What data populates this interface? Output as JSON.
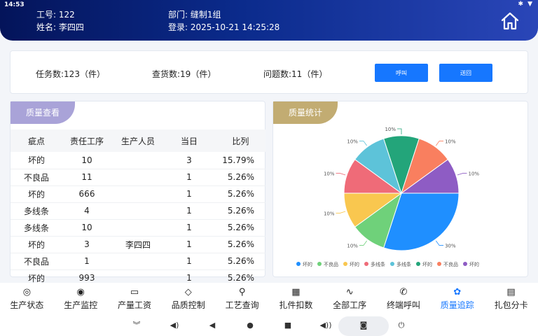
{
  "status_bar": {
    "time": "14:53",
    "bluetooth": "✱",
    "wifi": "▼"
  },
  "header": {
    "employee_id": "工号: 122",
    "name": "姓名: 李四四",
    "department": "部门: 缝制1组",
    "login": "登录: 2025-10-21 14:25:28"
  },
  "stats": {
    "tasks": "任务数:123（件）",
    "checks": "查货数:19（件）",
    "issues": "问题数:11（件）",
    "call_button": "呼叫",
    "send_button": "送回"
  },
  "quality_panel": {
    "title": "质量查看",
    "columns": [
      "疵点",
      "责任工序",
      "生产人员",
      "当日",
      "比列"
    ],
    "rows": [
      [
        "坏的",
        "10",
        "",
        "3",
        "15.79%"
      ],
      [
        "不良品",
        "11",
        "",
        "1",
        "5.26%"
      ],
      [
        "坏的",
        "666",
        "",
        "1",
        "5.26%"
      ],
      [
        "多线条",
        "4",
        "",
        "1",
        "5.26%"
      ],
      [
        "多线条",
        "10",
        "",
        "1",
        "5.26%"
      ],
      [
        "坏的",
        "3",
        "李四四",
        "1",
        "5.26%"
      ],
      [
        "不良品",
        "1",
        "",
        "1",
        "5.26%"
      ],
      [
        "坏的",
        "993",
        "",
        "1",
        "5.26%"
      ]
    ]
  },
  "stats_panel": {
    "title": "质量统计"
  },
  "chart_data": {
    "type": "pie",
    "slices": [
      {
        "label": "坏的",
        "value": 30,
        "label_text": "30%",
        "color": "#1f8fff"
      },
      {
        "label": "不良品",
        "value": 10,
        "label_text": "10%",
        "color": "#6fd17a"
      },
      {
        "label": "坏的",
        "value": 10,
        "label_text": "10%",
        "color": "#f9c74f"
      },
      {
        "label": "多线条",
        "value": 10,
        "label_text": "10%",
        "color": "#ef6b78"
      },
      {
        "label": "多线条",
        "value": 10,
        "label_text": "10%",
        "color": "#5dc3d9"
      },
      {
        "label": "坏的",
        "value": 10,
        "label_text": "10%",
        "color": "#23a57a"
      },
      {
        "label": "不良品",
        "value": 10,
        "label_text": "10%",
        "color": "#f97f5f"
      },
      {
        "label": "坏的",
        "value": 10,
        "label_text": "10%",
        "color": "#8e5cc4"
      }
    ],
    "legend_position": "bottom"
  },
  "nav": {
    "items": [
      {
        "label": "生产状态",
        "icon": "◎"
      },
      {
        "label": "生产监控",
        "icon": "◉"
      },
      {
        "label": "产量工资",
        "icon": "▭"
      },
      {
        "label": "品质控制",
        "icon": "◇"
      },
      {
        "label": "工艺查询",
        "icon": "⚲"
      },
      {
        "label": "扎件扣数",
        "icon": "▦"
      },
      {
        "label": "全部工序",
        "icon": "∿"
      },
      {
        "label": "终端呼叫",
        "icon": "✆"
      },
      {
        "label": "质量追踪",
        "icon": "✿"
      },
      {
        "label": "扎包分卡",
        "icon": "▤"
      }
    ],
    "active_index": 8
  },
  "system_bar": {
    "collapse": "︾",
    "vol_down": "◀)",
    "back": "◀",
    "home": "●",
    "recents": "■",
    "vol_up": "◀))",
    "camera": "◙",
    "power": "⏻"
  }
}
